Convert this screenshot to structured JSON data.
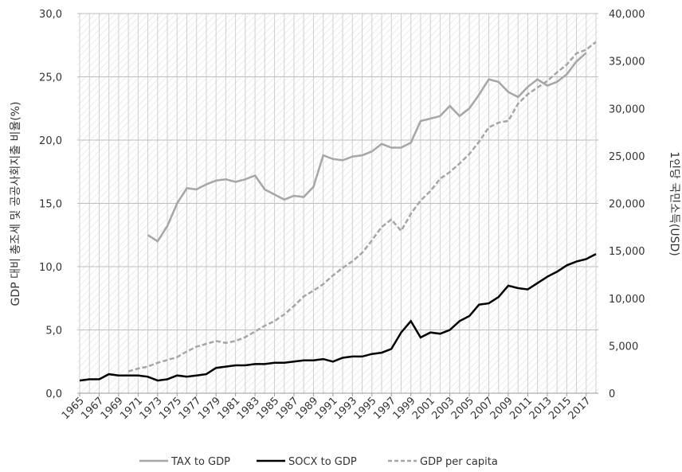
{
  "chart_data": {
    "type": "line",
    "y_label": "GDP 대비 총조세 및 공공사회지출 비율(%)",
    "y2_label": "1인당 국민소득(USD)",
    "x": [
      1965,
      1966,
      1967,
      1968,
      1969,
      1970,
      1971,
      1972,
      1973,
      1974,
      1975,
      1976,
      1977,
      1978,
      1979,
      1980,
      1981,
      1982,
      1983,
      1984,
      1985,
      1986,
      1987,
      1988,
      1989,
      1990,
      1991,
      1992,
      1993,
      1994,
      1995,
      1996,
      1997,
      1998,
      1999,
      2000,
      2001,
      2002,
      2003,
      2004,
      2005,
      2006,
      2007,
      2008,
      2009,
      2010,
      2011,
      2012,
      2013,
      2014,
      2015,
      2016,
      2017,
      2018
    ],
    "xlim": [
      1965,
      2018
    ],
    "xticks": [
      1965,
      1967,
      1969,
      1971,
      1973,
      1975,
      1977,
      1979,
      1981,
      1983,
      1985,
      1987,
      1989,
      1991,
      1993,
      1995,
      1997,
      1999,
      2001,
      2003,
      2005,
      2007,
      2009,
      2011,
      2013,
      2015,
      2017
    ],
    "ylim": [
      0,
      30
    ],
    "yticks": [
      {
        "value": 0,
        "label": "0,0"
      },
      {
        "value": 5,
        "label": "5,0"
      },
      {
        "value": 10,
        "label": "10,0"
      },
      {
        "value": 15,
        "label": "15,0"
      },
      {
        "value": 20,
        "label": "20,0"
      },
      {
        "value": 25,
        "label": "25,0"
      },
      {
        "value": 30,
        "label": "30,0"
      }
    ],
    "y2lim": [
      0,
      40000
    ],
    "y2ticks": [
      0,
      {
        "value": 5000,
        "label": "5,000"
      },
      {
        "value": 10000,
        "label": "10,000"
      },
      {
        "value": 15000,
        "label": "15,000"
      },
      {
        "value": 20000,
        "label": "20,000"
      },
      {
        "value": 25000,
        "label": "25,000"
      },
      {
        "value": 30000,
        "label": "30,000"
      },
      {
        "value": 35000,
        "label": "35,000"
      },
      {
        "value": 40000,
        "label": "40,000"
      }
    ],
    "grid": true,
    "legend": "bottom",
    "series": [
      {
        "name": "TAX to GDP",
        "color": "#a6a6a6",
        "dash": false,
        "values": [
          null,
          null,
          null,
          null,
          null,
          null,
          null,
          12.5,
          12.0,
          13.2,
          15.0,
          16.2,
          16.1,
          16.5,
          16.8,
          16.9,
          16.7,
          16.9,
          17.2,
          16.1,
          15.7,
          15.3,
          15.6,
          15.5,
          16.3,
          18.8,
          18.5,
          18.4,
          18.7,
          18.8,
          19.1,
          19.7,
          19.4,
          19.4,
          19.8,
          21.5,
          21.7,
          21.9,
          22.7,
          21.9,
          22.5,
          23.6,
          24.8,
          24.6,
          23.8,
          23.4,
          24.2,
          24.8,
          24.3,
          24.6,
          25.2,
          26.2,
          26.9,
          null
        ]
      },
      {
        "name": "SOCX to GDP",
        "color": "#000000",
        "dash": false,
        "values": [
          1.0,
          1.1,
          1.1,
          1.5,
          1.4,
          1.4,
          1.4,
          1.3,
          1.0,
          1.1,
          1.4,
          1.3,
          1.4,
          1.5,
          2.0,
          2.1,
          2.2,
          2.2,
          2.3,
          2.3,
          2.4,
          2.4,
          2.5,
          2.6,
          2.6,
          2.7,
          2.5,
          2.8,
          2.9,
          2.9,
          3.1,
          3.2,
          3.5,
          4.8,
          5.7,
          4.4,
          4.8,
          4.7,
          5.0,
          5.7,
          6.1,
          7.0,
          7.1,
          7.6,
          8.5,
          8.3,
          8.2,
          8.7,
          9.2,
          9.6,
          10.1,
          10.4,
          10.6,
          11.0
        ]
      },
      {
        "name": "GDP per capita",
        "color": "#a6a6a6",
        "dash": true,
        "axis": "y2",
        "values": [
          null,
          null,
          null,
          null,
          null,
          2300,
          2600,
          2800,
          3200,
          3500,
          3800,
          4400,
          4900,
          5200,
          5500,
          5300,
          5500,
          5900,
          6500,
          7100,
          7600,
          8300,
          9200,
          10200,
          10800,
          11500,
          12400,
          13200,
          13900,
          14800,
          16100,
          17500,
          18300,
          17100,
          18900,
          20300,
          21300,
          22600,
          23300,
          24200,
          25200,
          26500,
          28000,
          28500,
          28700,
          30500,
          31500,
          32200,
          32900,
          33800,
          34600,
          35800,
          36200,
          37000
        ]
      }
    ]
  }
}
